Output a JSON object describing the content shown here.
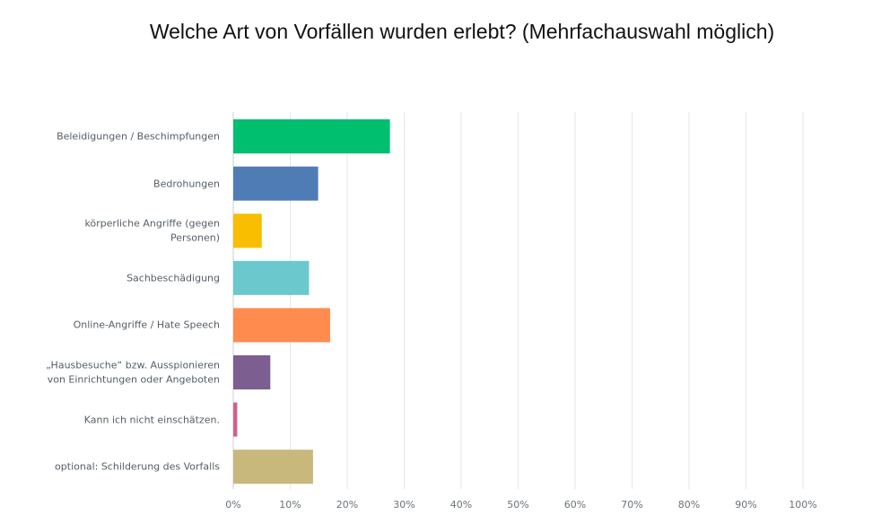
{
  "chart_data": {
    "type": "bar",
    "orientation": "horizontal",
    "title": "Welche Art von Vorfällen wurden erlebt? (Mehrfachauswahl möglich)",
    "categories": [
      "Beleidigungen / Beschimpfungen",
      "Bedrohungen",
      "körperliche Angriffe (gegen Personen)",
      "Sachbeschädigung",
      "Online-Angriffe / Hate Speech",
      "„Hausbesuche“ bzw. Ausspionieren von Einrichtungen oder Angeboten",
      "Kann ich nicht einschätzen.",
      "optional: Schilderung des Vorfalls"
    ],
    "values": [
      27.5,
      14.9,
      5.0,
      13.3,
      17.0,
      6.5,
      0.7,
      14.0
    ],
    "colors": [
      "#00bf6f",
      "#507cb6",
      "#f9be00",
      "#6bc8cd",
      "#ff8b4f",
      "#7d5e90",
      "#d25f90",
      "#c9b87b"
    ],
    "xlim": [
      0,
      100
    ],
    "xticks": [
      0,
      10,
      20,
      30,
      40,
      50,
      60,
      70,
      80,
      90,
      100
    ],
    "xtick_labels": [
      "0%",
      "10%",
      "20%",
      "30%",
      "40%",
      "50%",
      "60%",
      "70%",
      "80%",
      "90%",
      "100%"
    ],
    "grid": true
  }
}
